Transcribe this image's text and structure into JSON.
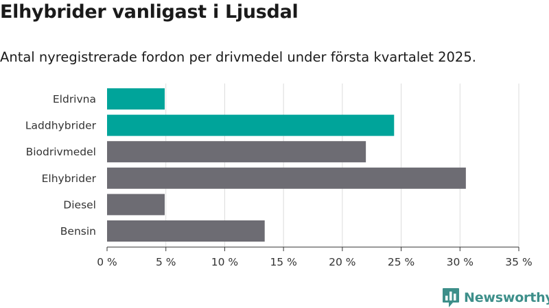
{
  "chart_data": {
    "type": "bar",
    "orientation": "horizontal",
    "title": "Elhybrider vanligast i Ljusdal",
    "subtitle": "Antal nyregistrerade fordon per drivmedel under första kvartalet 2025.",
    "categories": [
      "Eldrivna",
      "Laddhybrider",
      "Biodrivmedel",
      "Elhybrider",
      "Diesel",
      "Bensin"
    ],
    "values": [
      4.9,
      24.4,
      22.0,
      30.5,
      4.9,
      13.4
    ],
    "bar_colors": [
      "#00a49a",
      "#00a49a",
      "#6d6c73",
      "#6d6c73",
      "#6d6c73",
      "#6d6c73"
    ],
    "xlim": [
      0,
      35
    ],
    "x_ticks": [
      0,
      5,
      10,
      15,
      20,
      25,
      30,
      35
    ],
    "x_tick_labels": [
      "0 %",
      "5 %",
      "10 %",
      "15 %",
      "20 %",
      "25 %",
      "30 %",
      "35 %"
    ],
    "grid": true,
    "xlabel": "",
    "ylabel": ""
  },
  "branding": {
    "logo_text": "Newsworthy",
    "logo_icon": "bar-chart-speech-bubble-icon",
    "logo_color": "#3d8f8a"
  },
  "colors": {
    "grid": "#dcdcdc",
    "axis": "#333333"
  }
}
